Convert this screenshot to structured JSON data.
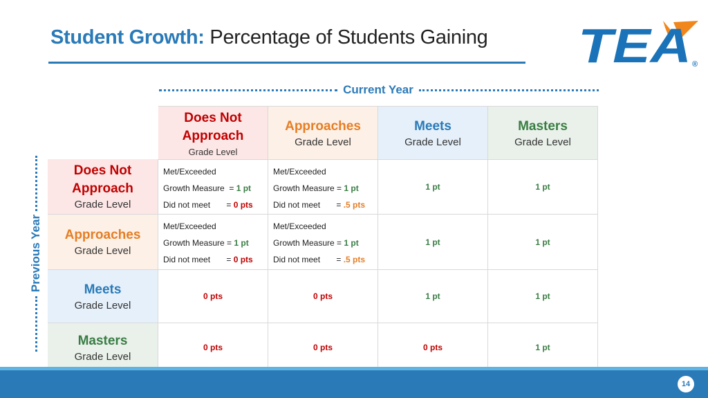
{
  "title": {
    "bold": "Student Growth:",
    "rest": " Percentage of Students Gaining"
  },
  "logo": {
    "text": "TEA",
    "mark": "®",
    "colors": {
      "blue": "#1a73b8",
      "orange": "#f0861c"
    }
  },
  "current_year_label": "Current Year",
  "previous_year_label": "Previous Year",
  "colors": {
    "accent": "#2a7ab8",
    "red": "#c00000",
    "orange": "#e57e25",
    "green": "#3a7d44"
  },
  "columns": [
    {
      "main": "Does Not Approach",
      "sub": "Grade Level"
    },
    {
      "main": "Approaches",
      "sub": "Grade Level"
    },
    {
      "main": "Meets",
      "sub": "Grade Level"
    },
    {
      "main": "Masters",
      "sub": "Grade Level"
    }
  ],
  "rows": [
    {
      "main": "Does Not Approach",
      "sub": "Grade Level"
    },
    {
      "main": "Approaches",
      "sub": "Grade Level"
    },
    {
      "main": "Meets",
      "sub": "Grade Level"
    },
    {
      "main": "Masters",
      "sub": "Grade Level"
    }
  ],
  "cells": {
    "r0c0": {
      "l1": "Met/Exceeded",
      "l2": "Growth Measure  = ",
      "v2": "1 pt",
      "l3": "Did not meet       = ",
      "v3": "0 pts"
    },
    "r0c1": {
      "l1": "Met/Exceeded",
      "l2": "Growth Measure = ",
      "v2": "1 pt",
      "l3": "Did not meet       = ",
      "v3": ".5 pts"
    },
    "r0c2": "1 pt",
    "r0c3": "1 pt",
    "r1c0": {
      "l1": "Met/Exceeded",
      "l2": "Growth Measure = ",
      "v2": "1 pt",
      "l3": "Did not meet       = ",
      "v3": "0 pts"
    },
    "r1c1": {
      "l1": "Met/Exceeded",
      "l2": "Growth Measure = ",
      "v2": "1 pt",
      "l3": "Did not meet       = ",
      "v3": ".5 pts"
    },
    "r1c2": "1 pt",
    "r1c3": "1 pt",
    "r2c0": "0 pts",
    "r2c1": "0 pts",
    "r2c2": "1 pt",
    "r2c3": "1 pt",
    "r3c0": "0 pts",
    "r3c1": "0 pts",
    "r3c2": "0 pts",
    "r3c3": "1 pt"
  },
  "page_number": "14"
}
